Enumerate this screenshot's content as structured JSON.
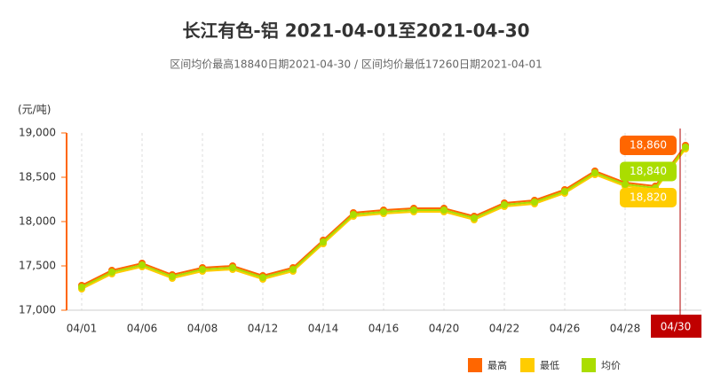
{
  "chart_data": {
    "type": "line",
    "title": "长江有色-铝 2021-04-01至2021-04-30",
    "subtitle": "区间均价最高18840日期2021-04-30 / 区间均价最低17260日期2021-04-01",
    "y_label": "(元/吨)",
    "categories": [
      "04/01",
      null,
      "04/06",
      null,
      "04/08",
      null,
      "04/12",
      null,
      "04/14",
      null,
      "04/16",
      null,
      "04/20",
      null,
      "04/22",
      null,
      "04/26",
      null,
      "04/28",
      null,
      "04/30"
    ],
    "ylim": [
      17000,
      19000
    ],
    "yticks": [
      {
        "value": 17000,
        "label": "17,000"
      },
      {
        "value": 17500,
        "label": "17,500"
      },
      {
        "value": 18000,
        "label": "18,000"
      },
      {
        "value": 18500,
        "label": "18,500"
      },
      {
        "value": 19000,
        "label": "19,000"
      }
    ],
    "series": [
      {
        "name": "最高",
        "color": "#ff6600",
        "values": [
          17280,
          17450,
          17530,
          17400,
          17480,
          17500,
          17390,
          17480,
          17790,
          18100,
          18130,
          18150,
          18150,
          18060,
          18210,
          18240,
          18360,
          18570,
          18440,
          18400,
          18860
        ],
        "value_labels": [
          null,
          null,
          null,
          null,
          null,
          null,
          null,
          null,
          null,
          null,
          null,
          null,
          null,
          null,
          null,
          null,
          null,
          null,
          null,
          null,
          "18,860"
        ]
      },
      {
        "name": "最低",
        "color": "#ffcc00",
        "values": [
          17240,
          17410,
          17490,
          17360,
          17440,
          17460,
          17350,
          17440,
          17750,
          18060,
          18090,
          18110,
          18110,
          18020,
          18170,
          18200,
          18320,
          18530,
          18400,
          18360,
          18820
        ],
        "value_labels": [
          null,
          null,
          null,
          null,
          null,
          null,
          null,
          null,
          null,
          null,
          null,
          null,
          null,
          null,
          null,
          null,
          null,
          null,
          null,
          null,
          "18,820"
        ]
      },
      {
        "name": "均价",
        "color": "#aadd00",
        "values": [
          17260,
          17430,
          17510,
          17380,
          17460,
          17480,
          17370,
          17460,
          17770,
          18080,
          18110,
          18130,
          18130,
          18040,
          18190,
          18220,
          18340,
          18550,
          18420,
          18380,
          18840
        ],
        "value_labels": [
          null,
          null,
          null,
          null,
          null,
          null,
          null,
          null,
          null,
          null,
          null,
          null,
          null,
          null,
          null,
          null,
          null,
          null,
          null,
          null,
          "18,840"
        ]
      }
    ]
  }
}
